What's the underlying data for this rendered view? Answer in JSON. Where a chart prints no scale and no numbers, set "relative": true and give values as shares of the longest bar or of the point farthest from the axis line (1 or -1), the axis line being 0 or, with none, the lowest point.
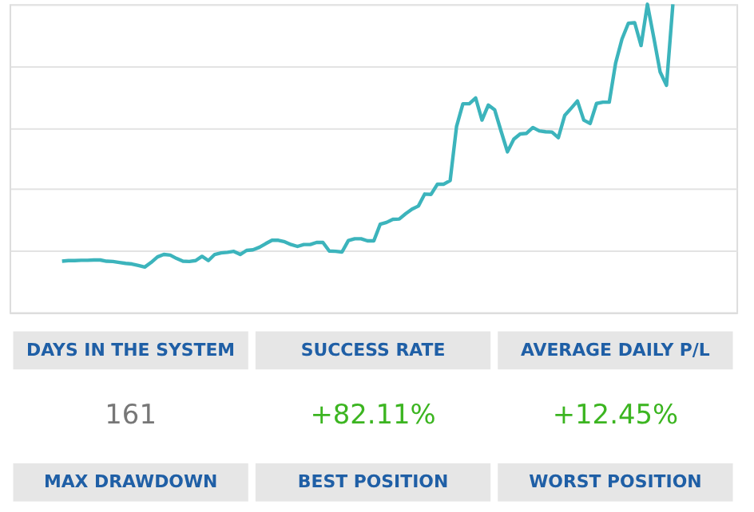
{
  "chart_data": [
    {
      "type": "line",
      "relative": true,
      "grid": "y",
      "tick_labels": false,
      "categories": [
        null,
        null,
        null,
        null,
        null,
        null,
        null,
        null,
        null,
        null,
        null,
        null,
        null,
        null,
        null,
        null,
        null,
        null,
        null,
        null,
        null,
        null,
        null,
        null,
        null,
        null,
        null,
        null,
        null,
        null,
        null,
        null,
        null,
        null,
        null,
        null,
        null,
        null,
        null,
        null,
        null,
        null,
        null,
        null,
        null,
        null,
        null,
        null,
        null,
        null,
        null,
        null,
        null,
        null,
        null,
        null,
        null,
        null,
        null,
        null,
        null,
        null,
        null,
        null,
        null,
        null,
        null,
        null,
        null,
        null,
        null,
        null,
        null,
        null,
        null,
        null,
        null,
        null,
        null,
        null,
        null,
        null,
        null,
        null,
        null,
        null,
        null,
        null,
        null,
        null,
        null,
        null,
        null,
        null,
        null,
        null,
        null
      ],
      "series": [
        {
          "color": "#3cb4bc",
          "values": [
            0.166,
            0.168,
            0.168,
            0.169,
            0.169,
            0.17,
            0.17,
            0.166,
            0.165,
            0.162,
            0.159,
            0.157,
            0.152,
            0.147,
            0.162,
            0.18,
            0.188,
            0.186,
            0.175,
            0.166,
            0.165,
            0.168,
            0.182,
            0.168,
            0.188,
            0.193,
            0.195,
            0.198,
            0.188,
            0.201,
            0.203,
            0.211,
            0.223,
            0.234,
            0.234,
            0.229,
            0.22,
            0.214,
            0.22,
            0.22,
            0.227,
            0.227,
            0.199,
            0.198,
            0.196,
            0.233,
            0.239,
            0.239,
            0.232,
            0.232,
            0.286,
            0.292,
            0.302,
            0.303,
            0.32,
            0.335,
            0.345,
            0.384,
            0.383,
            0.416,
            0.416,
            0.428,
            0.603,
            0.677,
            0.677,
            0.696,
            0.624,
            0.673,
            0.657,
            0.588,
            0.521,
            0.562,
            0.579,
            0.581,
            0.6,
            0.589,
            0.586,
            0.585,
            0.567,
            0.639,
            0.662,
            0.686,
            0.624,
            0.613,
            0.678,
            0.682,
            0.682,
            0.809,
            0.887,
            0.938,
            0.94,
            0.866,
            1,
            0.892,
            0.78,
            0.737,
            1
          ]
        }
      ]
    },
    {
      "type": "other",
      "categories": [
        "DAYS IN THE SYSTEM",
        "SUCCESS RATE",
        "AVERAGE DAILY P/L",
        "MAX DRAWDOWN",
        "BEST POSITION",
        "WORST POSITION"
      ],
      "value_labels": [
        "161",
        "+82.11%",
        "+12.45%",
        null,
        null,
        null
      ],
      "colors": [
        "#e6e6e6",
        "#e6e6e6",
        "#e6e6e6",
        "#e6e6e6",
        "#e6e6e6",
        "#e6e6e6"
      ]
    }
  ]
}
